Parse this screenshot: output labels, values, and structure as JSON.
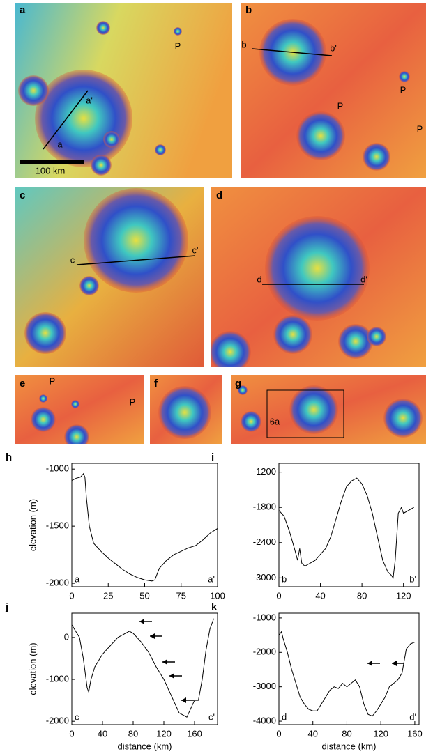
{
  "panels": [
    {
      "letter": "a",
      "labels": [
        "a'",
        "a",
        "P",
        "100 km"
      ]
    },
    {
      "letter": "b",
      "labels": [
        "b",
        "b'",
        "P",
        "P",
        "P"
      ]
    },
    {
      "letter": "c",
      "labels": [
        "c",
        "c'"
      ]
    },
    {
      "letter": "d",
      "labels": [
        "d",
        "d'"
      ]
    },
    {
      "letter": "e",
      "labels": [
        "P",
        "P"
      ]
    },
    {
      "letter": "f",
      "labels": []
    },
    {
      "letter": "g",
      "labels": [
        "6a"
      ]
    }
  ],
  "chart_data": [
    {
      "type": "line",
      "panel": "h",
      "ylabel": "elevation (m)",
      "annotations": [
        "a",
        "a'"
      ],
      "xlim": [
        0,
        100
      ],
      "xticks": [
        0,
        25,
        50,
        75,
        100
      ],
      "ylim": [
        -2030,
        -950
      ],
      "yticks": [
        -2000,
        -1500,
        -1000
      ],
      "color": "#000000",
      "x": [
        0,
        3,
        6,
        8,
        9,
        10,
        12,
        15,
        20,
        25,
        30,
        35,
        40,
        45,
        50,
        55,
        57,
        60,
        65,
        70,
        75,
        80,
        85,
        90,
        95,
        100
      ],
      "values": [
        -1100,
        -1080,
        -1070,
        -1040,
        -1070,
        -1250,
        -1500,
        -1650,
        -1720,
        -1780,
        -1830,
        -1880,
        -1920,
        -1950,
        -1970,
        -1980,
        -1970,
        -1870,
        -1800,
        -1750,
        -1720,
        -1690,
        -1670,
        -1620,
        -1560,
        -1520
      ]
    },
    {
      "type": "line",
      "panel": "i",
      "annotations": [
        "b",
        "b'"
      ],
      "xlim": [
        0,
        135
      ],
      "xticks": [
        0,
        40,
        80,
        120
      ],
      "ylim": [
        -3150,
        -1050
      ],
      "yticks": [
        -3000,
        -2400,
        -1800,
        -1200
      ],
      "color": "#000000",
      "x": [
        0,
        5,
        10,
        15,
        18,
        20,
        22,
        25,
        30,
        35,
        40,
        45,
        50,
        55,
        60,
        65,
        70,
        75,
        80,
        85,
        90,
        95,
        100,
        105,
        108,
        110,
        112,
        115,
        118,
        120,
        125,
        130
      ],
      "values": [
        -1850,
        -1950,
        -2200,
        -2500,
        -2700,
        -2500,
        -2750,
        -2800,
        -2750,
        -2700,
        -2600,
        -2500,
        -2300,
        -2000,
        -1700,
        -1450,
        -1350,
        -1300,
        -1400,
        -1600,
        -1900,
        -2300,
        -2700,
        -2900,
        -2950,
        -3000,
        -2700,
        -1900,
        -1800,
        -1900,
        -1850,
        -1800
      ]
    },
    {
      "type": "line",
      "panel": "j",
      "ylabel": "elevation (m)",
      "xlabel": "distance (km)",
      "annotations": [
        "c",
        "c'"
      ],
      "xlim": [
        0,
        190
      ],
      "xticks": [
        0,
        40,
        80,
        120,
        160
      ],
      "ylim": [
        -2080,
        580
      ],
      "yticks": [
        -2000,
        -1000,
        0
      ],
      "color": "#000000",
      "x": [
        0,
        5,
        10,
        15,
        20,
        22,
        25,
        30,
        40,
        50,
        60,
        70,
        75,
        80,
        90,
        100,
        110,
        120,
        130,
        140,
        145,
        150,
        155,
        160,
        165,
        170,
        175,
        180,
        185
      ],
      "values": [
        300,
        150,
        0,
        -500,
        -1200,
        -1300,
        -1000,
        -700,
        -400,
        -200,
        0,
        100,
        150,
        100,
        -100,
        -350,
        -700,
        -1000,
        -1400,
        -1800,
        -1850,
        -1900,
        -1700,
        -1500,
        -1500,
        -1000,
        -300,
        200,
        450
      ]
    },
    {
      "type": "line",
      "panel": "k",
      "xlabel": "distance (km)",
      "annotations": [
        "d",
        "d'"
      ],
      "xlim": [
        0,
        165
      ],
      "xticks": [
        0,
        40,
        80,
        120,
        160
      ],
      "ylim": [
        -4100,
        -860
      ],
      "yticks": [
        -4000,
        -3000,
        -2000,
        -1000
      ],
      "color": "#000000",
      "x": [
        0,
        3,
        5,
        10,
        15,
        20,
        25,
        30,
        35,
        40,
        45,
        50,
        55,
        60,
        65,
        70,
        75,
        80,
        85,
        90,
        95,
        100,
        105,
        110,
        115,
        120,
        125,
        130,
        135,
        140,
        145,
        150,
        155,
        160
      ],
      "values": [
        -1500,
        -1400,
        -1600,
        -2000,
        -2500,
        -2900,
        -3300,
        -3500,
        -3650,
        -3700,
        -3700,
        -3500,
        -3300,
        -3100,
        -3000,
        -3050,
        -2900,
        -3000,
        -2900,
        -2800,
        -3000,
        -3500,
        -3800,
        -3850,
        -3700,
        -3500,
        -3300,
        -3000,
        -2900,
        -2800,
        -2600,
        -1900,
        -1750,
        -1700
      ]
    }
  ]
}
